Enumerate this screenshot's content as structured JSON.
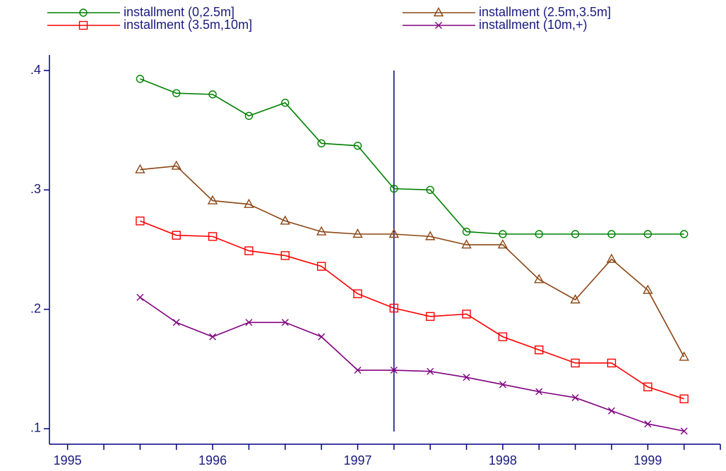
{
  "chart_data": {
    "type": "line",
    "x": [
      1995.5,
      1995.75,
      1996,
      1996.25,
      1996.5,
      1996.75,
      1997,
      1997.25,
      1997.5,
      1997.75,
      1998,
      1998.25,
      1998.5,
      1998.75,
      1999,
      1999.25
    ],
    "series": [
      {
        "name": "installment (0,2.5m]",
        "color": "#008000",
        "marker": "circle",
        "values": [
          0.393,
          0.381,
          0.38,
          0.362,
          0.373,
          0.339,
          0.337,
          0.301,
          0.3,
          0.265,
          0.263,
          0.263,
          0.263,
          0.263,
          0.263,
          0.263
        ]
      },
      {
        "name": "installment (2.5m,3.5m]",
        "color": "#8b4513",
        "marker": "triangle",
        "values": [
          0.317,
          0.32,
          0.291,
          0.288,
          0.274,
          0.265,
          0.263,
          0.263,
          0.261,
          0.254,
          0.254,
          0.225,
          0.208,
          0.242,
          0.216,
          0.16
        ]
      },
      {
        "name": "installment (3.5m,10m]",
        "color": "#ff0000",
        "marker": "square",
        "values": [
          0.274,
          0.262,
          0.261,
          0.249,
          0.245,
          0.236,
          0.213,
          0.201,
          0.194,
          0.196,
          0.177,
          0.166,
          0.155,
          0.155,
          0.135,
          0.125
        ]
      },
      {
        "name": "installment (10m,+)",
        "color": "#800080",
        "marker": "x",
        "values": [
          0.21,
          0.189,
          0.177,
          0.189,
          0.189,
          0.177,
          0.149,
          0.149,
          0.148,
          0.143,
          0.137,
          0.131,
          0.126,
          0.115,
          0.104,
          0.098
        ]
      }
    ],
    "xlim": [
      1994.875,
      1999.5
    ],
    "xticks": [
      1995,
      1996,
      1997,
      1998,
      1999
    ],
    "x_minor_ticks": [
      1995.25,
      1995.5,
      1995.75,
      1996.25,
      1996.5,
      1996.75,
      1997.25,
      1997.5,
      1997.75,
      1998.25,
      1998.5,
      1998.75,
      1999.25,
      1999.5
    ],
    "ylim": [
      0.087,
      0.413
    ],
    "yticks": [
      {
        "value": 0.1,
        "label": ".1"
      },
      {
        "value": 0.2,
        "label": ".2"
      },
      {
        "value": 0.3,
        "label": ".3"
      },
      {
        "value": 0.4,
        "label": ".4"
      }
    ],
    "xline": 1997.25,
    "legend": "top"
  }
}
